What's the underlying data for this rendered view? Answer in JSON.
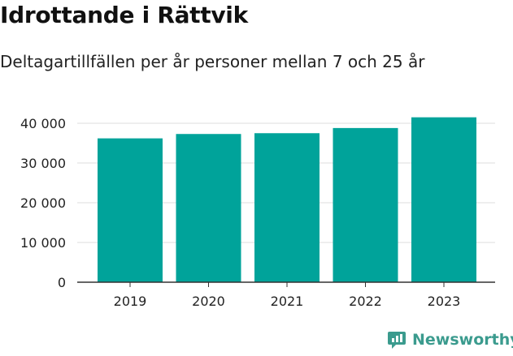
{
  "title": "Idrottande i Rättvik",
  "subtitle": "Deltagartillfällen per år personer mellan 7 och 25 år",
  "brand": "Newsworthy",
  "colors": {
    "bar": "#00a39a",
    "grid": "#dddddd",
    "axis": "#333333",
    "brand": "#3b9b8e"
  },
  "chart_data": {
    "type": "bar",
    "categories": [
      "2019",
      "2020",
      "2021",
      "2022",
      "2023"
    ],
    "values": [
      36200,
      37300,
      37500,
      38800,
      41500
    ],
    "ylim": [
      0,
      40000
    ],
    "yticks": [
      0,
      10000,
      20000,
      30000,
      40000
    ],
    "ytick_labels": [
      "0",
      "10 000",
      "20 000",
      "30 000",
      "40 000"
    ],
    "xlabel": "",
    "ylabel": "",
    "grid": true,
    "legend": "none"
  }
}
